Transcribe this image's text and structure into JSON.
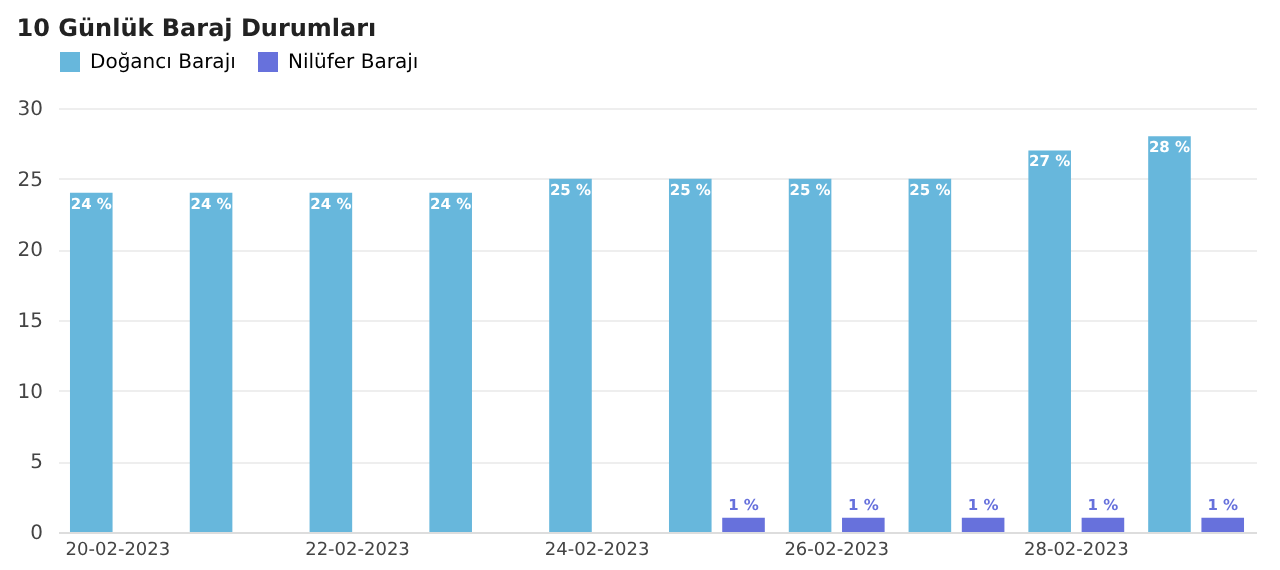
{
  "chart_data": {
    "type": "bar",
    "title": "10 Günlük Baraj Durumları",
    "categories": [
      "20-02-2023",
      null,
      "22-02-2023",
      null,
      "24-02-2023",
      null,
      "26-02-2023",
      null,
      "28-02-2023",
      null
    ],
    "series": [
      {
        "name": "Doğancı Barajı",
        "color": "#67b7dc",
        "values": [
          24,
          24,
          24,
          24,
          25,
          25,
          25,
          25,
          27,
          28
        ],
        "value_labels": [
          "24 %",
          "24 %",
          "24 %",
          "24 %",
          "25 %",
          "25 %",
          "25 %",
          "25 %",
          "27 %",
          "28 %"
        ]
      },
      {
        "name": "Nilüfer Barajı",
        "color": "#6771dc",
        "values": [
          0,
          0,
          0,
          0,
          0,
          1,
          1,
          1,
          1,
          1
        ],
        "value_labels": [
          null,
          null,
          null,
          null,
          null,
          "1 %",
          "1 %",
          "1 %",
          "1 %",
          "1 %"
        ]
      }
    ],
    "ylim": [
      0,
      30
    ],
    "yticks": [
      0,
      5,
      10,
      15,
      20,
      25,
      30
    ],
    "grid": "y",
    "legend": "top"
  }
}
